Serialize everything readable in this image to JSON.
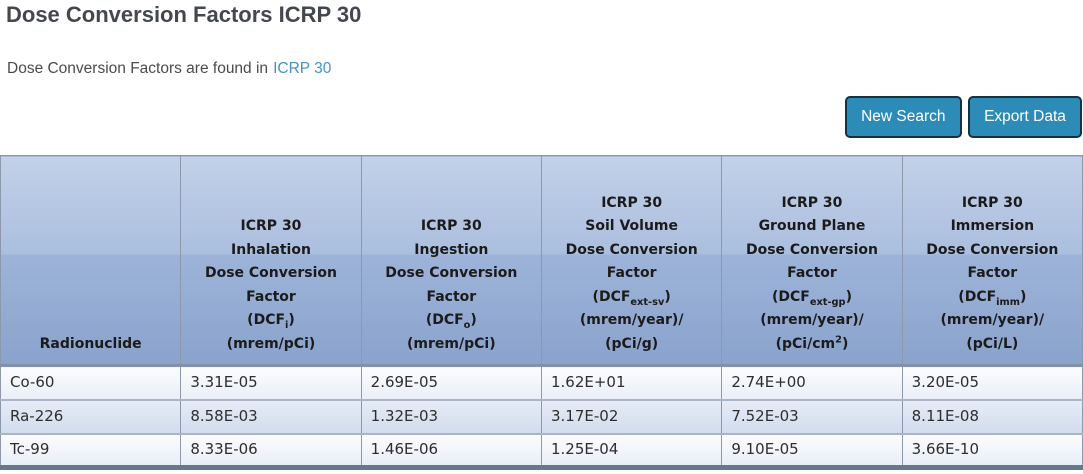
{
  "page": {
    "title": "Dose Conversion Factors ICRP 30",
    "subtitle_prefix": "Dose Conversion Factors are found in",
    "subtitle_link": "ICRP 30"
  },
  "toolbar": {
    "new_search_label": "New Search",
    "export_data_label": "Export Data"
  },
  "colors": {
    "button_accent": "#2C8CB7",
    "button_border": "#16323F",
    "link": "#4296BF",
    "header_gradient_top": "#C3D1E9",
    "header_gradient_bottom": "#8AA3CC",
    "row_light": "#EFF3F9",
    "row_alt": "#D9E2F0",
    "table_bottom_bar": "#66788E"
  },
  "table": {
    "columns": [
      {
        "id": "radionuclide",
        "header_lines": [
          "Radionuclide"
        ]
      },
      {
        "id": "inhalation-dcf",
        "header_lines": [
          "ICRP 30",
          "Inhalation",
          "Dose Conversion",
          "Factor",
          "(DCF~i~)",
          "(mrem/pCi)"
        ]
      },
      {
        "id": "ingestion-dcf",
        "header_lines": [
          "ICRP 30",
          "Ingestion",
          "Dose Conversion",
          "Factor",
          "(DCF~o~)",
          "(mrem/pCi)"
        ]
      },
      {
        "id": "soil-volume-dcf",
        "header_lines": [
          "ICRP 30",
          "Soil Volume",
          "Dose Conversion",
          "Factor",
          "(DCF~ext-sv~)",
          "(mrem/year)/",
          "(pCi/g)"
        ]
      },
      {
        "id": "ground-plane-dcf",
        "header_lines": [
          "ICRP 30",
          "Ground Plane",
          "Dose Conversion",
          "Factor",
          "(DCF~ext-gp~)",
          "(mrem/year)/",
          "(pCi/cm^2^)"
        ]
      },
      {
        "id": "immersion-dcf",
        "header_lines": [
          "ICRP 30",
          "Immersion",
          "Dose Conversion",
          "Factor",
          "(DCF~imm~)",
          "(mrem/year)/",
          "(pCi/L)"
        ]
      }
    ],
    "rows": [
      {
        "radionuclide": "Co-60",
        "values": [
          "3.31E-05",
          "2.69E-05",
          "1.62E+01",
          "2.74E+00",
          "3.20E-05"
        ]
      },
      {
        "radionuclide": "Ra-226",
        "values": [
          "8.58E-03",
          "1.32E-03",
          "3.17E-02",
          "7.52E-03",
          "8.11E-08"
        ]
      },
      {
        "radionuclide": "Tc-99",
        "values": [
          "8.33E-06",
          "1.46E-06",
          "1.25E-04",
          "9.10E-05",
          "3.66E-10"
        ]
      }
    ]
  }
}
